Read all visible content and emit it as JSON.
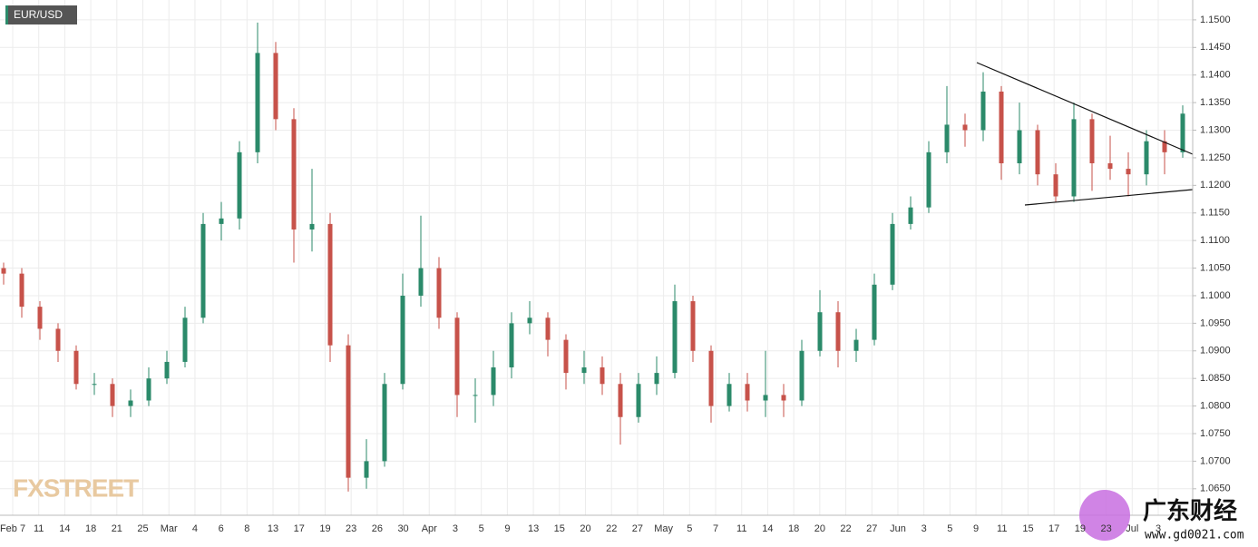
{
  "chart_data": {
    "type": "candlestick",
    "title": "EUR/USD",
    "open": [
      1.105,
      1.104,
      1.098,
      1.094,
      1.09,
      1.084,
      1.084,
      1.08,
      1.081,
      1.085,
      1.088,
      1.096,
      1.113,
      1.114,
      1.126,
      1.144,
      1.132,
      1.112,
      1.113,
      1.091,
      1.067,
      1.07,
      1.084,
      1.1,
      1.105,
      1.096,
      1.082,
      1.082,
      1.087,
      1.095,
      1.096,
      1.092,
      1.086,
      1.087,
      1.084,
      1.078,
      1.084,
      1.086,
      1.099,
      1.09,
      1.08,
      1.084,
      1.081,
      1.082,
      1.081,
      1.09,
      1.097,
      1.09,
      1.092,
      1.102,
      1.113,
      1.116,
      1.126,
      1.131,
      1.13,
      1.137,
      1.124,
      1.13,
      1.122,
      1.118,
      1.132,
      1.124,
      1.123,
      1.122,
      1.128,
      1.126
    ],
    "high": [
      1.106,
      1.105,
      1.099,
      1.095,
      1.091,
      1.086,
      1.085,
      1.083,
      1.087,
      1.09,
      1.098,
      1.115,
      1.117,
      1.128,
      1.1495,
      1.146,
      1.134,
      1.123,
      1.115,
      1.093,
      1.074,
      1.086,
      1.104,
      1.1145,
      1.107,
      1.097,
      1.085,
      1.09,
      1.097,
      1.099,
      1.097,
      1.093,
      1.09,
      1.089,
      1.086,
      1.086,
      1.089,
      1.102,
      1.1,
      1.091,
      1.086,
      1.086,
      1.09,
      1.084,
      1.092,
      1.101,
      1.099,
      1.094,
      1.104,
      1.115,
      1.118,
      1.128,
      1.138,
      1.133,
      1.1405,
      1.138,
      1.135,
      1.131,
      1.124,
      1.135,
      1.133,
      1.129,
      1.126,
      1.13,
      1.13,
      1.1345
    ],
    "low": [
      1.102,
      1.096,
      1.092,
      1.088,
      1.083,
      1.082,
      1.078,
      1.078,
      1.08,
      1.084,
      1.087,
      1.095,
      1.11,
      1.112,
      1.124,
      1.13,
      1.106,
      1.108,
      1.088,
      1.0645,
      1.065,
      1.069,
      1.083,
      1.098,
      1.094,
      1.078,
      1.077,
      1.08,
      1.085,
      1.093,
      1.089,
      1.083,
      1.084,
      1.082,
      1.073,
      1.077,
      1.082,
      1.085,
      1.088,
      1.077,
      1.079,
      1.079,
      1.078,
      1.078,
      1.08,
      1.089,
      1.087,
      1.088,
      1.091,
      1.101,
      1.112,
      1.115,
      1.124,
      1.127,
      1.128,
      1.121,
      1.122,
      1.12,
      1.117,
      1.117,
      1.119,
      1.121,
      1.118,
      1.12,
      1.122,
      1.125
    ],
    "close": [
      1.104,
      1.098,
      1.094,
      1.09,
      1.084,
      1.084,
      1.08,
      1.081,
      1.085,
      1.088,
      1.096,
      1.113,
      1.114,
      1.126,
      1.144,
      1.132,
      1.112,
      1.113,
      1.091,
      1.067,
      1.07,
      1.084,
      1.1,
      1.105,
      1.096,
      1.082,
      1.082,
      1.087,
      1.095,
      1.096,
      1.092,
      1.086,
      1.087,
      1.084,
      1.078,
      1.084,
      1.086,
      1.099,
      1.09,
      1.08,
      1.084,
      1.081,
      1.082,
      1.081,
      1.09,
      1.097,
      1.09,
      1.092,
      1.102,
      1.113,
      1.116,
      1.126,
      1.131,
      1.13,
      1.137,
      1.124,
      1.13,
      1.122,
      1.118,
      1.132,
      1.124,
      1.123,
      1.122,
      1.128,
      1.126,
      1.133
    ],
    "up_color": "#2b8a6a",
    "down_color": "#c7524a",
    "ylim": [
      1.0602,
      1.1536
    ],
    "yticks": [
      {
        "value": 1.065,
        "label": "1.0650"
      },
      {
        "value": 1.07,
        "label": "1.0700"
      },
      {
        "value": 1.075,
        "label": "1.0750"
      },
      {
        "value": 1.08,
        "label": "1.0800"
      },
      {
        "value": 1.085,
        "label": "1.0850"
      },
      {
        "value": 1.09,
        "label": "1.0900"
      },
      {
        "value": 1.095,
        "label": "1.0950"
      },
      {
        "value": 1.1,
        "label": "1.1000"
      },
      {
        "value": 1.105,
        "label": "1.1050"
      },
      {
        "value": 1.11,
        "label": "1.1100"
      },
      {
        "value": 1.115,
        "label": "1.1150"
      },
      {
        "value": 1.12,
        "label": "1.1200"
      },
      {
        "value": 1.125,
        "label": "1.1250"
      },
      {
        "value": 1.13,
        "label": "1.1300"
      },
      {
        "value": 1.135,
        "label": "1.1350"
      },
      {
        "value": 1.14,
        "label": "1.1400"
      },
      {
        "value": 1.145,
        "label": "1.1450"
      },
      {
        "value": 1.15,
        "label": "1.1500"
      }
    ],
    "x_labels": [
      "Feb 7",
      "11",
      "14",
      "18",
      "21",
      "25",
      "Mar",
      "4",
      "6",
      "8",
      "13",
      "17",
      "19",
      "23",
      "26",
      "30",
      "Apr",
      "3",
      "5",
      "9",
      "13",
      "15",
      "20",
      "22",
      "27",
      "May",
      "5",
      "7",
      "11",
      "14",
      "18",
      "20",
      "22",
      "27",
      "Jun",
      "3",
      "5",
      "9",
      "11",
      "15",
      "17",
      "19",
      "23",
      "Jul",
      "3"
    ],
    "grid": true
  },
  "watermarks": {
    "left": "FXSTREET",
    "right_title": "广东财经",
    "right_url": "www.gd0021.com"
  }
}
